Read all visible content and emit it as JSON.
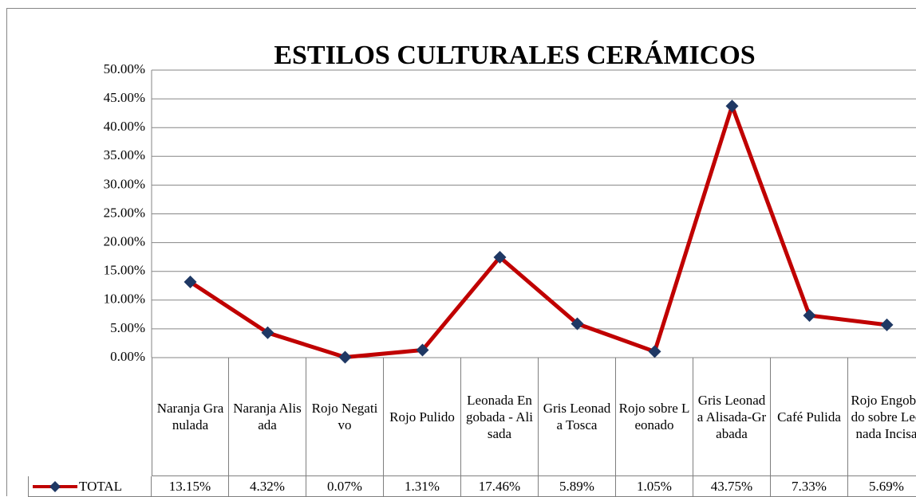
{
  "chart_data": {
    "type": "line",
    "title": "ESTILOS CULTURALES  CERÁMICOS",
    "categories": [
      "Naranja Granulada",
      "Naranja Alisada",
      "Rojo Negativo",
      "Rojo Pulido",
      "Leonada Engobada - Alisada",
      "Gris Leonada Tosca",
      "Rojo sobre Leonado",
      "Gris Leonada Alisada-Grabada",
      "Café Pulida",
      "Rojo Engobado sobre Leonada Incisa"
    ],
    "series": [
      {
        "name": "TOTAL",
        "color": "#c00000",
        "marker_color": "#1f3864",
        "values": [
          13.15,
          4.32,
          0.07,
          1.31,
          17.46,
          5.89,
          1.05,
          43.75,
          7.33,
          5.69
        ],
        "value_labels": [
          "13.15%",
          "4.32%",
          "0.07%",
          "1.31%",
          "17.46%",
          "5.89%",
          "1.05%",
          "43.75%",
          "7.33%",
          "5.69%"
        ]
      }
    ],
    "ylim": [
      0,
      50
    ],
    "yticks": [
      {
        "value": 0,
        "label": "0.00%"
      },
      {
        "value": 5,
        "label": "5.00%"
      },
      {
        "value": 10,
        "label": "10.00%"
      },
      {
        "value": 15,
        "label": "15.00%"
      },
      {
        "value": 20,
        "label": "20.00%"
      },
      {
        "value": 25,
        "label": "25.00%"
      },
      {
        "value": 30,
        "label": "30.00%"
      },
      {
        "value": 35,
        "label": "35.00%"
      },
      {
        "value": 40,
        "label": "40.00%"
      },
      {
        "value": 45,
        "label": "45.00%"
      },
      {
        "value": 50,
        "label": "50.00%"
      }
    ],
    "grid": true
  }
}
